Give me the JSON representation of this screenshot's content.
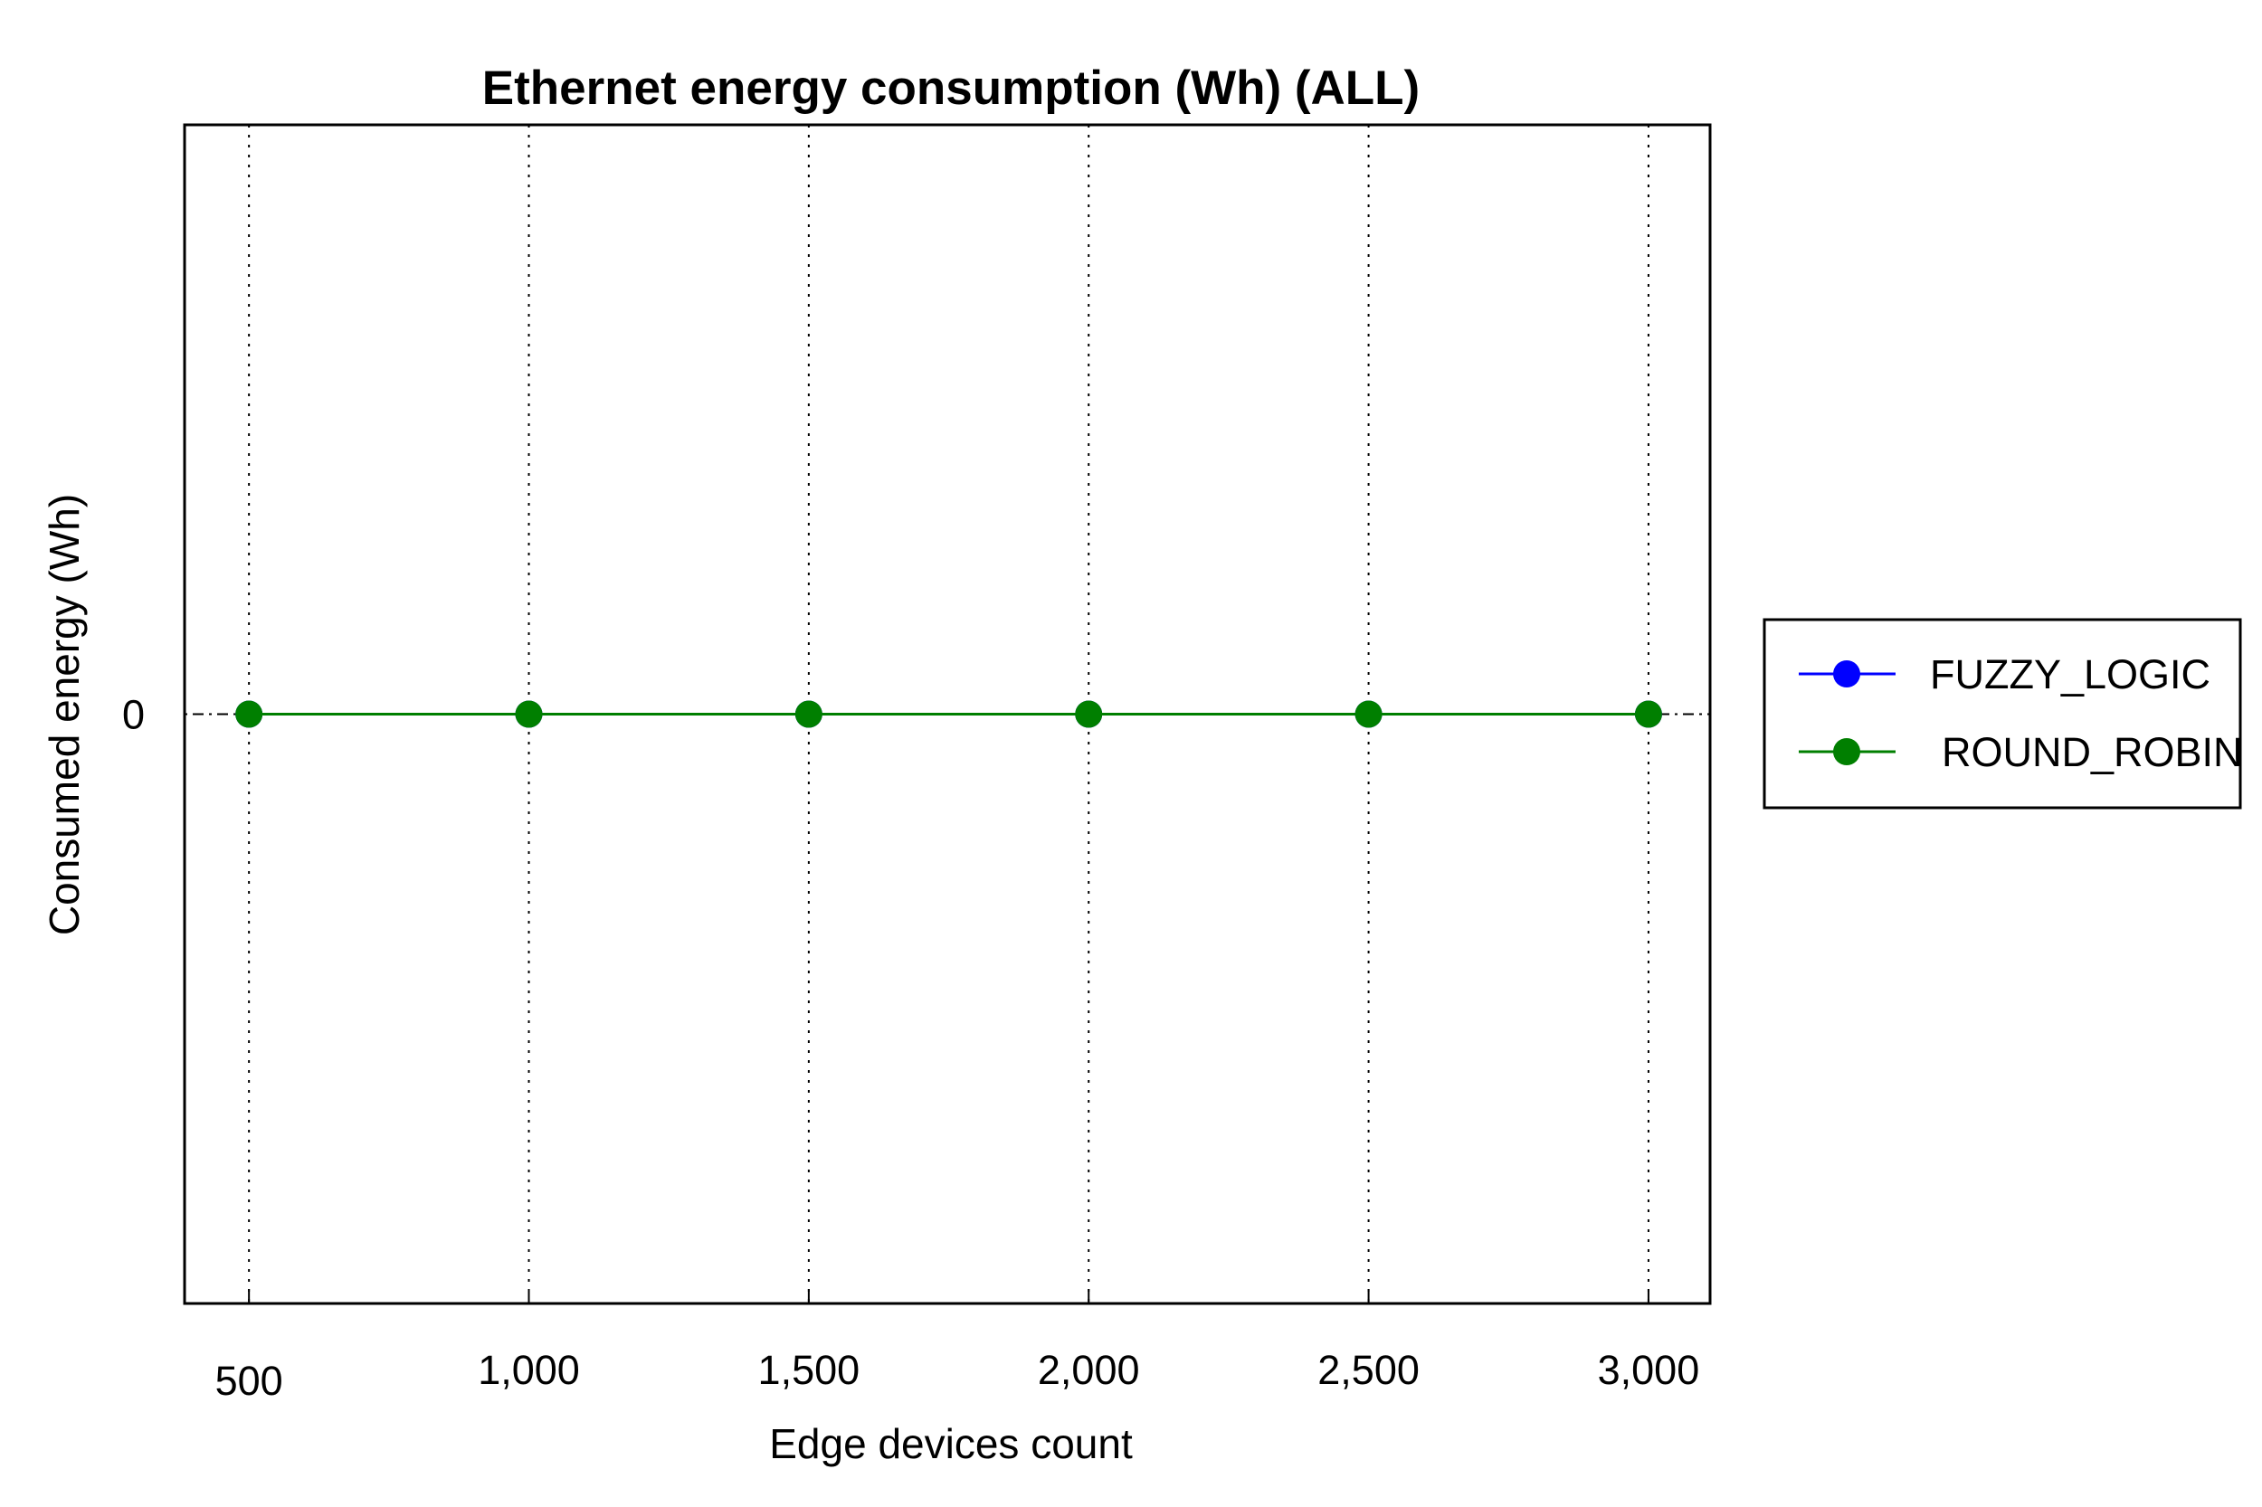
{
  "chart_data": {
    "type": "line",
    "title": "Ethernet energy consumption (Wh) (ALL)",
    "xlabel": "Edge devices count",
    "ylabel": "Consumed energy (Wh)",
    "x": [
      500,
      1000,
      1500,
      2000,
      2500,
      3000
    ],
    "x_tick_labels": [
      "500",
      "1,000",
      "1,500",
      "2,000",
      "2,500",
      "3,000"
    ],
    "y_tick_values": [
      0
    ],
    "y_tick_labels": [
      "0"
    ],
    "xlim": [
      385,
      3110
    ],
    "ylim": [
      -1,
      1
    ],
    "grid": "vertical dotted",
    "legend_position": "right",
    "series": [
      {
        "name": "FUZZY_LOGIC",
        "color": "#0000ff",
        "marker": "circle",
        "values": [
          0,
          0,
          0,
          0,
          0,
          0
        ]
      },
      {
        "name": "ROUND_ROBIN",
        "color": "#007f00",
        "marker": "circle",
        "values": [
          0,
          0,
          0,
          0,
          0,
          0
        ]
      }
    ]
  }
}
